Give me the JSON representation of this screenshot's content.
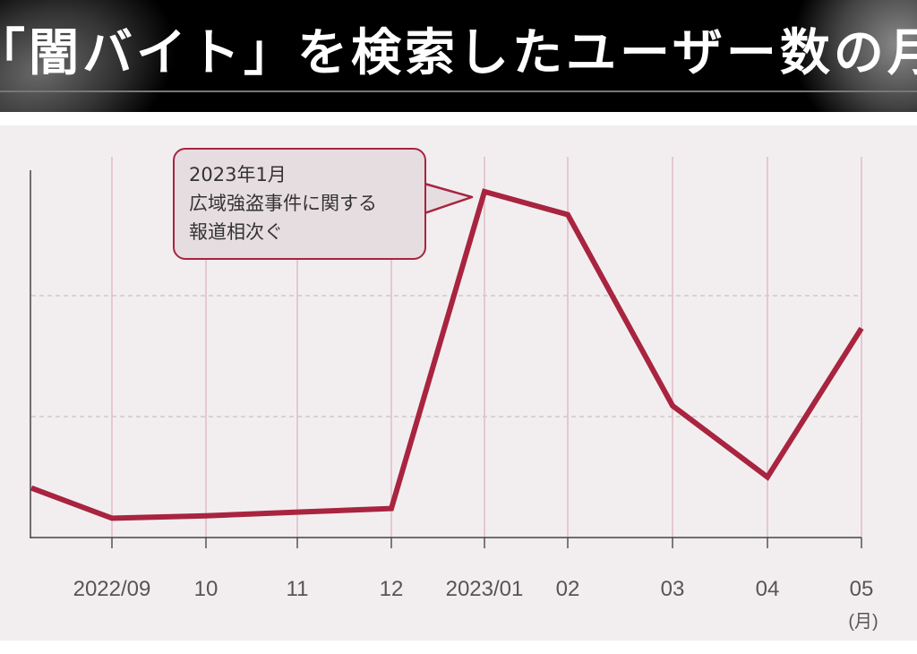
{
  "header": {
    "title": "「闇バイト」を検索したユーザー数の月次推移"
  },
  "chart_data": {
    "type": "line",
    "title": "「闇バイト」を検索したユーザー数の月次推移",
    "categories": [
      "",
      "2022/09",
      "10",
      "11",
      "12",
      "2023/01",
      "02",
      "03",
      "04",
      "05"
    ],
    "x_unit": "(月)",
    "series": [
      {
        "values": [
          0.41,
          0.16,
          0.18,
          0.21,
          0.24,
          2.86,
          2.67,
          1.09,
          0.5,
          1.73
        ]
      }
    ],
    "ylim": [
      0,
      3
    ],
    "grid": {
      "horizontal": "dashed",
      "vertical": true
    },
    "y_axis_labels": false,
    "annotation": {
      "lines": [
        "2023年1月",
        "広域強盗事件に関する",
        "報道相次ぐ"
      ],
      "target": "2023/01"
    },
    "colors": {
      "line": "#a8243f",
      "background": "#f2eef0",
      "vgrid": "#e2bcc6",
      "callout_fill": "#e6dde0"
    }
  }
}
